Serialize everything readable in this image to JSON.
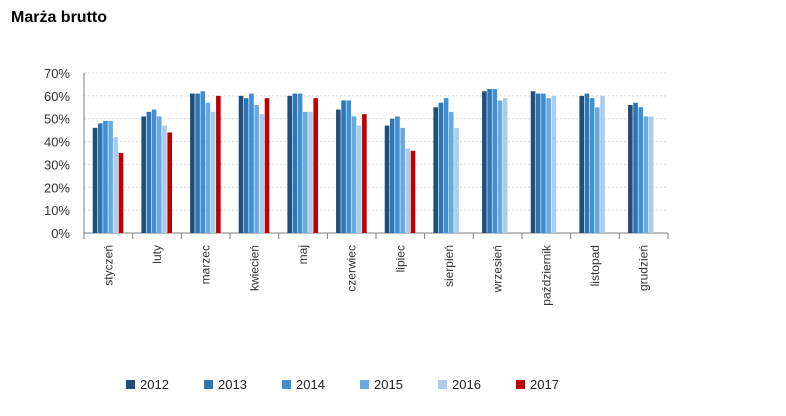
{
  "title": "Marża brutto",
  "chart_data": {
    "type": "bar",
    "title": "Marża brutto",
    "xlabel": "",
    "ylabel": "",
    "ylim": [
      0,
      70
    ],
    "yticks": [
      "0%",
      "10%",
      "20%",
      "30%",
      "40%",
      "50%",
      "60%",
      "70%"
    ],
    "grid": true,
    "legend": "bottom",
    "categories": [
      "styczeń",
      "luty",
      "marzec",
      "kwiecień",
      "maj",
      "czerwiec",
      "lipiec",
      "sierpień",
      "wrzesień",
      "październik",
      "listopad",
      "grudzień"
    ],
    "series": [
      {
        "name": "2012",
        "color": "#1f4e79",
        "values": [
          46,
          51,
          61,
          60,
          60,
          54,
          47,
          55,
          62,
          62,
          60,
          56
        ]
      },
      {
        "name": "2013",
        "color": "#2e75b6",
        "values": [
          48,
          53,
          61,
          59,
          61,
          58,
          50,
          57,
          63,
          61,
          61,
          57
        ]
      },
      {
        "name": "2014",
        "color": "#3f8fd2",
        "values": [
          49,
          54,
          62,
          61,
          61,
          58,
          51,
          59,
          63,
          61,
          59,
          55
        ]
      },
      {
        "name": "2015",
        "color": "#6aa9e0",
        "values": [
          49,
          51,
          57,
          56,
          53,
          51,
          46,
          53,
          58,
          59,
          55,
          51
        ]
      },
      {
        "name": "2016",
        "color": "#a9cdee",
        "values": [
          42,
          47,
          53,
          52,
          53,
          47,
          37,
          46,
          59,
          60,
          60,
          51
        ]
      },
      {
        "name": "2017",
        "color": "#c00000",
        "values": [
          35,
          44,
          60,
          59,
          59,
          52,
          36,
          null,
          null,
          null,
          null,
          null
        ]
      }
    ]
  }
}
